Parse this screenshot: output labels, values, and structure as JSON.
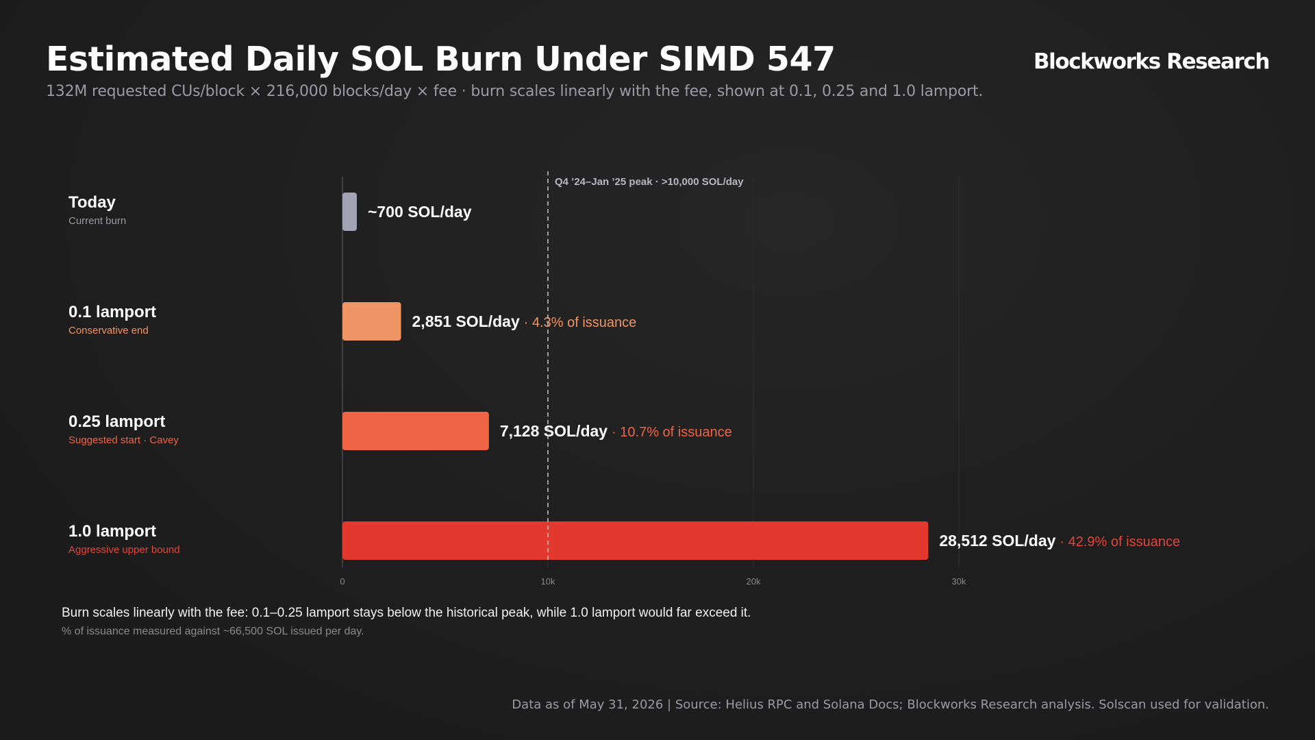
{
  "header": {
    "title": "Estimated Daily SOL Burn Under SIMD 547",
    "subtitle": "132M requested CUs/block × 216,000 blocks/day × fee · burn scales linearly with the fee, shown at 0.1, 0.25 and 1.0 lamport.",
    "brand": "Blockworks Research"
  },
  "chart_data": {
    "type": "bar",
    "orientation": "horizontal",
    "xlim": [
      0,
      30000
    ],
    "x_ticks": [
      0,
      10000,
      20000,
      30000
    ],
    "x_tick_labels": [
      "0",
      "10k",
      "20k",
      "30k"
    ],
    "grid": true,
    "reference_line": {
      "value": 10000,
      "label": "Q4 ’24–Jan ’25 peak · >10,000 SOL/day",
      "style": "dashed"
    },
    "rows": [
      {
        "name": "Today",
        "desc": "Current burn",
        "value": 700,
        "value_label": "~700 SOL/day",
        "share_label": "",
        "color": "#a4a3b5",
        "desc_color": "#9b9ba3"
      },
      {
        "name": "0.1 lamport",
        "desc": "Conservative end",
        "value": 2851,
        "value_label": "2,851 SOL/day",
        "share_label": "· 4.3% of issuance",
        "color": "#f09566",
        "desc_color": "#f09566"
      },
      {
        "name": "0.25 lamport",
        "desc": "Suggested start · Cavey",
        "value": 7128,
        "value_label": "7,128 SOL/day",
        "share_label": "· 10.7% of issuance",
        "color": "#f06446",
        "desc_color": "#f06446"
      },
      {
        "name": "1.0 lamport",
        "desc": "Aggressive upper bound",
        "value": 28512,
        "value_label": "28,512 SOL/day",
        "share_label": "· 42.9% of issuance",
        "color": "#e3382e",
        "desc_color": "#e3453a"
      }
    ]
  },
  "notes": {
    "main": "Burn scales linearly with the fee: 0.1–0.25 lamport stays below the historical peak, while 1.0 lamport would far exceed it.",
    "sub": "% of issuance measured against ~66,500 SOL issued per day."
  },
  "footer": {
    "source": "Data as of May 31, 2026 | Source: Helius RPC and Solana Docs; Blockworks Research analysis. Solscan used for validation."
  }
}
